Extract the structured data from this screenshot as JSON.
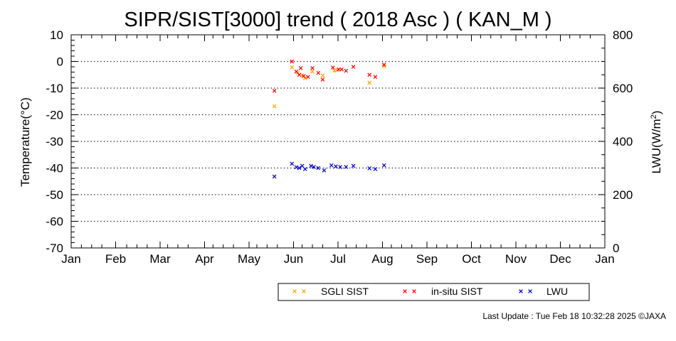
{
  "chart_data": {
    "type": "scatter",
    "title": "SIPR/SIST[3000] trend ( 2018 Asc ) ( KAN_M )",
    "ylabel": "Temperature(°C)",
    "y2label_main": "LWU(W/m",
    "y2label_sup": "2",
    "y2label_end": ")",
    "ylim": [
      -70,
      10
    ],
    "y2lim": [
      0,
      800
    ],
    "yticks": [
      "10",
      "0",
      "-10",
      "-20",
      "-30",
      "-40",
      "-50",
      "-60",
      "-70"
    ],
    "y2ticks": [
      "800",
      "600",
      "400",
      "200",
      "0"
    ],
    "months": [
      "Jan",
      "Feb",
      "Mar",
      "Apr",
      "May",
      "Jun",
      "Jul",
      "Aug",
      "Sep",
      "Oct",
      "Nov",
      "Dec",
      "Jan"
    ],
    "grid": true,
    "legend_position": "bottom",
    "series": [
      {
        "name": "SGLI SIST",
        "color": "#FFA500",
        "axis": "left",
        "points": [
          [
            "2018-05-20",
            -16.8
          ],
          [
            "2018-06-01",
            -2.2
          ],
          [
            "2018-06-05",
            -4.2
          ],
          [
            "2018-06-08",
            -5.2
          ],
          [
            "2018-06-10",
            -6.3
          ],
          [
            "2018-06-15",
            -3.8
          ],
          [
            "2018-06-22",
            -5.3
          ],
          [
            "2018-06-30",
            -3.5
          ],
          [
            "2018-07-02",
            -3.2
          ],
          [
            "2018-07-24",
            -8.0
          ],
          [
            "2018-08-03",
            -1.8
          ]
        ]
      },
      {
        "name": "in-situ SIST",
        "color": "#FF0000",
        "axis": "left",
        "points": [
          [
            "2018-05-20",
            -11.0
          ],
          [
            "2018-06-01",
            0.0
          ],
          [
            "2018-06-04",
            -3.8
          ],
          [
            "2018-06-06",
            -5.0
          ],
          [
            "2018-06-07",
            -2.5
          ],
          [
            "2018-06-09",
            -5.5
          ],
          [
            "2018-06-12",
            -5.8
          ],
          [
            "2018-06-15",
            -2.5
          ],
          [
            "2018-06-19",
            -4.3
          ],
          [
            "2018-06-22",
            -6.8
          ],
          [
            "2018-06-29",
            -2.3
          ],
          [
            "2018-07-03",
            -3.0
          ],
          [
            "2018-07-05",
            -3.0
          ],
          [
            "2018-07-08",
            -3.5
          ],
          [
            "2018-07-13",
            -2.0
          ],
          [
            "2018-07-24",
            -5.0
          ],
          [
            "2018-07-28",
            -5.8
          ],
          [
            "2018-08-03",
            -1.2
          ]
        ]
      },
      {
        "name": "LWU",
        "color": "#0000CC",
        "axis": "right",
        "points": [
          [
            "2018-05-20",
            268
          ],
          [
            "2018-06-01",
            316
          ],
          [
            "2018-06-04",
            303
          ],
          [
            "2018-06-06",
            300
          ],
          [
            "2018-06-08",
            308
          ],
          [
            "2018-06-10",
            296
          ],
          [
            "2018-06-14",
            308
          ],
          [
            "2018-06-16",
            304
          ],
          [
            "2018-06-19",
            300
          ],
          [
            "2018-06-23",
            291
          ],
          [
            "2018-06-28",
            310
          ],
          [
            "2018-07-01",
            306
          ],
          [
            "2018-07-04",
            304
          ],
          [
            "2018-07-08",
            304
          ],
          [
            "2018-07-13",
            308
          ],
          [
            "2018-07-24",
            299
          ],
          [
            "2018-07-28",
            296
          ],
          [
            "2018-08-03",
            310
          ]
        ]
      }
    ]
  },
  "footer": {
    "last_update": "Last Update : Tue Feb 18 10:32:28 2025  ©JAXA"
  }
}
